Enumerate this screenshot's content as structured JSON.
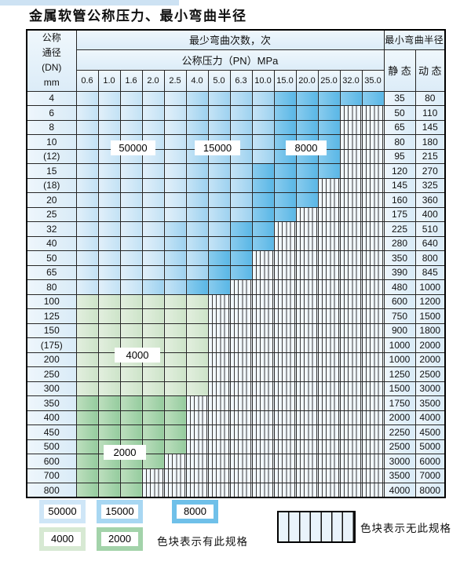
{
  "title": "金属软管公称压力、最小弯曲半径",
  "header": {
    "dn_lines": [
      "公称",
      "通径",
      "(DN)",
      "mm"
    ],
    "bend_times": "最少弯曲次数，次",
    "pressure_title": "公称压力（PN）MPa",
    "pressures": [
      "0.6",
      "1.0",
      "1.6",
      "2.0",
      "2.5",
      "4.0",
      "5.0",
      "6.3",
      "10.0",
      "15.0",
      "20.0",
      "25.0",
      "32.0",
      "35.0"
    ],
    "radius_title": "最小弯曲半径",
    "static_label": "静 态",
    "dynamic_label": "动 态"
  },
  "categories": {
    "A": "50000",
    "B": "15000",
    "C": "8000",
    "D": "4000",
    "E": "2000",
    "N": "no-spec"
  },
  "colors": {
    "A": "#cfe6f7",
    "B": "#a8d7f2",
    "C": "#6fc0e9",
    "D": "#d7e9d3",
    "E": "#a3d3aa",
    "grid": "#262626",
    "header_bg": "#e3eff9"
  },
  "rows": [
    {
      "dn": "4",
      "cells": "AAAAABBBBCCCCC",
      "static": "35",
      "dynamic": "80"
    },
    {
      "dn": "6",
      "cells": "AAAAABBBBCCCNN",
      "static": "50",
      "dynamic": "110"
    },
    {
      "dn": "8",
      "cells": "AAAAABBBBCCCNN",
      "static": "65",
      "dynamic": "145"
    },
    {
      "dn": "10",
      "cells": "AAAAABBBBCCCNN",
      "static": "80",
      "dynamic": "180"
    },
    {
      "dn": "(12)",
      "cells": "AAAAABBBBCCCNN",
      "static": "95",
      "dynamic": "215"
    },
    {
      "dn": "15",
      "cells": "AAAAABBBCCCCNN",
      "static": "120",
      "dynamic": "270"
    },
    {
      "dn": "(18)",
      "cells": "AAAAABBBCCCNNN",
      "static": "145",
      "dynamic": "325"
    },
    {
      "dn": "20",
      "cells": "AAAAABBBCCCNNN",
      "static": "160",
      "dynamic": "360"
    },
    {
      "dn": "25",
      "cells": "AAAAABBBCCNNNN",
      "static": "175",
      "dynamic": "400"
    },
    {
      "dn": "32",
      "cells": "AAAABBBCCNNNNN",
      "static": "225",
      "dynamic": "510"
    },
    {
      "dn": "40",
      "cells": "AAAABBBCCNNNNN",
      "static": "280",
      "dynamic": "640"
    },
    {
      "dn": "50",
      "cells": "AAAABBCCNNNNNN",
      "static": "350",
      "dynamic": "800"
    },
    {
      "dn": "65",
      "cells": "AAAABBCCNNNNNN",
      "static": "390",
      "dynamic": "845"
    },
    {
      "dn": "80",
      "cells": "AAABBCCNNNNNNN",
      "static": "480",
      "dynamic": "1000"
    },
    {
      "dn": "100",
      "cells": "DDDDDDNNNNNNNN",
      "static": "600",
      "dynamic": "1200"
    },
    {
      "dn": "125",
      "cells": "DDDDDDNNNNNNNN",
      "static": "750",
      "dynamic": "1500"
    },
    {
      "dn": "150",
      "cells": "DDDDDDNNNNNNNN",
      "static": "900",
      "dynamic": "1800"
    },
    {
      "dn": "(175)",
      "cells": "DDDDDDNNNNNNNN",
      "static": "1000",
      "dynamic": "2000"
    },
    {
      "dn": "200",
      "cells": "DDDDDDNNNNNNNN",
      "static": "1000",
      "dynamic": "2000"
    },
    {
      "dn": "250",
      "cells": "DDDDDDNNNNNNNN",
      "static": "1250",
      "dynamic": "2500"
    },
    {
      "dn": "300",
      "cells": "DDDDDDNNNNNNNN",
      "static": "1500",
      "dynamic": "3000"
    },
    {
      "dn": "350",
      "cells": "EEEEENNNNNNNNN",
      "static": "1750",
      "dynamic": "3500"
    },
    {
      "dn": "400",
      "cells": "EEEEENNNNNNNNN",
      "static": "2000",
      "dynamic": "4000"
    },
    {
      "dn": "450",
      "cells": "EEEEENNNNNNNNN",
      "static": "2250",
      "dynamic": "4500"
    },
    {
      "dn": "500",
      "cells": "EEEEENNNNNNNNN",
      "static": "2500",
      "dynamic": "5000"
    },
    {
      "dn": "600",
      "cells": "EEEENNNNNNNNNN",
      "static": "3000",
      "dynamic": "6000"
    },
    {
      "dn": "700",
      "cells": "EEENNNNNNNNNNN",
      "static": "3500",
      "dynamic": "7000"
    },
    {
      "dn": "800",
      "cells": "EEENNNNNNNNNNN",
      "static": "4000",
      "dynamic": "8000"
    }
  ],
  "overlay_labels": [
    {
      "text": "50000"
    },
    {
      "text": "15000"
    },
    {
      "text": "8000"
    },
    {
      "text": "4000"
    },
    {
      "text": "2000"
    }
  ],
  "legend": {
    "items": [
      {
        "label": "50000",
        "cat": "A"
      },
      {
        "label": "15000",
        "cat": "B"
      },
      {
        "label": "8000",
        "cat": "C"
      },
      {
        "label": "4000",
        "cat": "D"
      },
      {
        "label": "2000",
        "cat": "E"
      }
    ],
    "has_text": "色块表示有此规格",
    "none_text": "色块表示无此规格"
  }
}
